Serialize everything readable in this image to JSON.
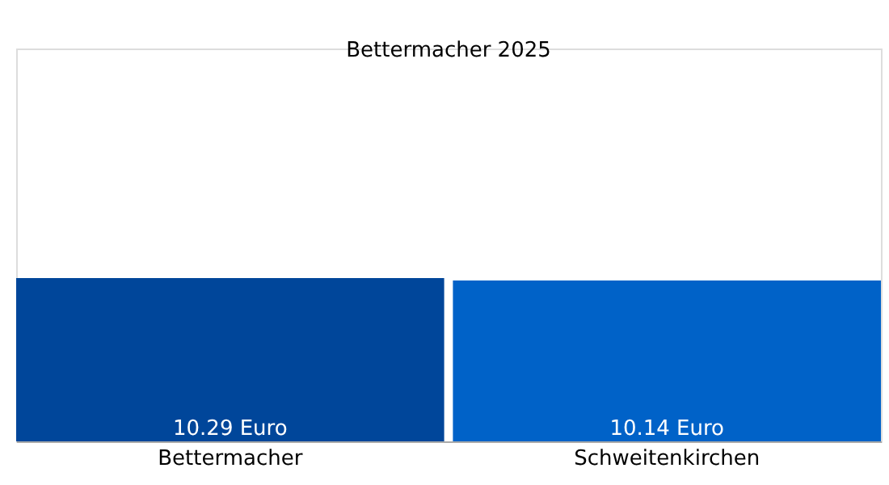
{
  "chart_data": {
    "type": "bar",
    "title": "Bettermacher 2025",
    "categories": [
      "Bettermacher",
      "Schweitenkirchen"
    ],
    "values": [
      10.29,
      10.14
    ],
    "colors": [
      "#00469a",
      "#0062c8"
    ],
    "value_labels": [
      "10.29 Euro",
      "10.14 Euro"
    ]
  }
}
